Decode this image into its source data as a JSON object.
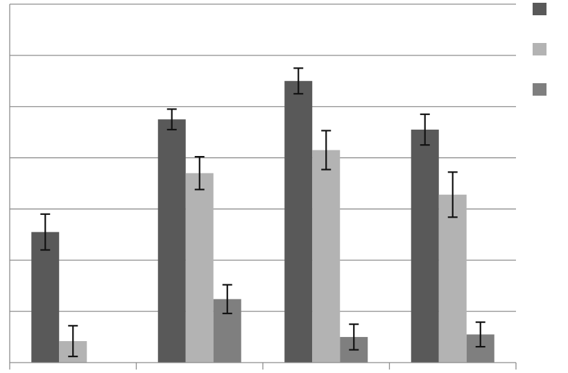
{
  "chart_data": {
    "type": "bar",
    "title": "",
    "xlabel": "",
    "ylabel": "",
    "categories": [
      "",
      "",
      "",
      ""
    ],
    "ylim": [
      0,
      7
    ],
    "grid": true,
    "legend_placement": "top-right",
    "series": [
      {
        "color": "#595959",
        "values": [
          2.55,
          4.75,
          5.5,
          4.55
        ],
        "errors": [
          0.35,
          0.2,
          0.25,
          0.3
        ]
      },
      {
        "color": "#b3b3b3",
        "values": [
          0.42,
          3.7,
          4.15,
          3.28
        ],
        "errors": [
          0.3,
          0.32,
          0.38,
          0.44
        ]
      },
      {
        "color": "#7f7f7f",
        "values": [
          0,
          1.24,
          0.5,
          0.55
        ],
        "errors": [
          0,
          0.28,
          0.25,
          0.24
        ]
      }
    ]
  }
}
